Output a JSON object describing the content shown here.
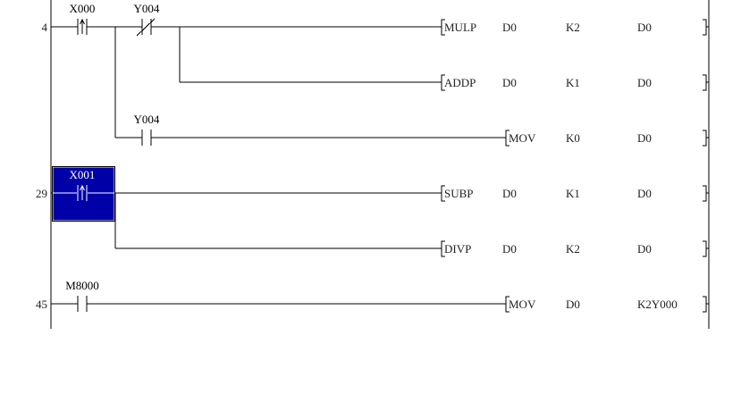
{
  "colors": {
    "selection": "#0000a8",
    "line": "#000000",
    "background": "#ffffff"
  },
  "rungs": [
    {
      "step": "4",
      "row": 0
    },
    {
      "step": "29",
      "row": 3
    },
    {
      "step": "45",
      "row": 5
    }
  ],
  "contacts": [
    {
      "label": "X000",
      "type": "rising-edge",
      "row": 0,
      "col": 0,
      "selected": false
    },
    {
      "label": "Y004",
      "type": "normally-closed",
      "row": 0,
      "col": 1,
      "selected": false
    },
    {
      "label": "Y004",
      "type": "normally-open",
      "row": 2,
      "col": 1,
      "selected": false
    },
    {
      "label": "X001",
      "type": "rising-edge",
      "row": 3,
      "col": 0,
      "selected": true
    },
    {
      "label": "M8000",
      "type": "normally-open",
      "row": 5,
      "col": 0,
      "selected": false
    }
  ],
  "instructions": [
    {
      "row": 0,
      "op": "MULP",
      "operands": [
        "D0",
        "K2",
        "D0"
      ]
    },
    {
      "row": 1,
      "op": "ADDP",
      "operands": [
        "D0",
        "K1",
        "D0"
      ]
    },
    {
      "row": 2,
      "op": "MOV",
      "operands": [
        "K0",
        "D0"
      ]
    },
    {
      "row": 3,
      "op": "SUBP",
      "operands": [
        "D0",
        "K1",
        "D0"
      ]
    },
    {
      "row": 4,
      "op": "DIVP",
      "operands": [
        "D0",
        "K2",
        "D0"
      ]
    },
    {
      "row": 5,
      "op": "MOV",
      "operands": [
        "D0",
        "K2Y000"
      ]
    }
  ]
}
